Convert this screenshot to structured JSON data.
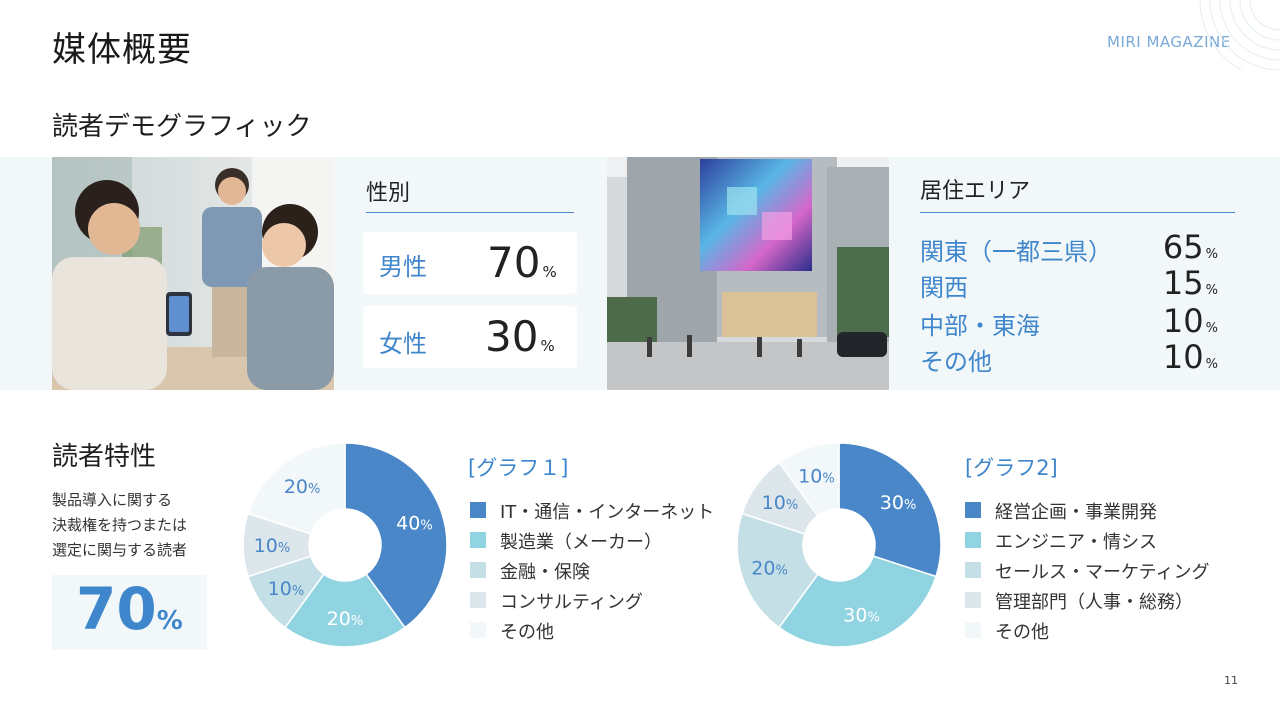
{
  "header": {
    "title": "媒体概要",
    "brand": "MIRI MAGAZINE",
    "page_number": "11"
  },
  "demographics": {
    "heading": "読者デモグラフィック",
    "gender": {
      "title": "性別",
      "rows": [
        {
          "label": "男性",
          "value": "70",
          "unit": "%"
        },
        {
          "label": "女性",
          "value": "30",
          "unit": "%"
        }
      ]
    },
    "area": {
      "title": "居住エリア",
      "rows": [
        {
          "label": "関東（一都三県）",
          "value": "65",
          "unit": "%"
        },
        {
          "label": "関西",
          "value": "15",
          "unit": "%"
        },
        {
          "label": "中部・東海",
          "value": "10",
          "unit": "%"
        },
        {
          "label": "その他",
          "value": "10",
          "unit": "%"
        }
      ]
    }
  },
  "traits": {
    "heading": "読者特性",
    "description": [
      "製品導入に関する",
      "決裁権を持つまたは",
      "選定に関与する読者"
    ],
    "highlight_value": "70",
    "highlight_unit": "%"
  },
  "colors": {
    "accent": "#3f86cc",
    "band": "#f2f8f9",
    "series": [
      "#4a87c9",
      "#90d4e2",
      "#c4dfe5",
      "#dde7eb",
      "#f2f7f9"
    ]
  },
  "chart_data": [
    {
      "type": "pie",
      "title": "[グラフ１]",
      "categories": [
        "IT・通信・インターネット",
        "製造業（メーカー）",
        "金融・保険",
        "コンサルティング",
        "その他"
      ],
      "values": [
        40,
        20,
        10,
        10,
        20
      ],
      "value_labels": [
        "40",
        "20",
        "10",
        "10",
        "20"
      ],
      "unit": "%",
      "legend": "right"
    },
    {
      "type": "pie",
      "title": "[グラフ2]",
      "categories": [
        "経営企画・事業開発",
        "エンジニア・情シス",
        "セールス・マーケティング",
        "管理部門（人事・総務）",
        "その他"
      ],
      "values": [
        30,
        30,
        20,
        10,
        10
      ],
      "value_labels": [
        "30",
        "30",
        "20",
        "10",
        "10"
      ],
      "unit": "%",
      "legend": "right"
    }
  ]
}
